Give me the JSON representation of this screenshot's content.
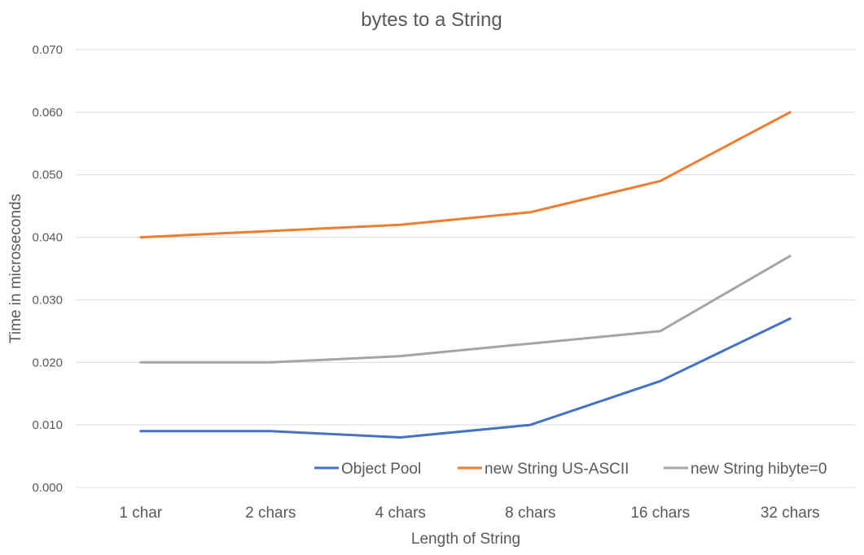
{
  "chart_data": {
    "type": "line",
    "title": "bytes to a String",
    "xlabel": "Length of String",
    "ylabel": "Time in microseconds",
    "categories": [
      "1 char",
      "2 chars",
      "4 chars",
      "8 chars",
      "16 chars",
      "32 chars"
    ],
    "ylim": [
      0,
      0.07
    ],
    "yticks": [
      "0.000",
      "0.010",
      "0.020",
      "0.030",
      "0.040",
      "0.050",
      "0.060",
      "0.070"
    ],
    "grid": true,
    "legend_position": "bottom-right",
    "series": [
      {
        "name": "Object Pool",
        "color": "#4472c4",
        "values": [
          0.009,
          0.009,
          0.008,
          0.01,
          0.017,
          0.027
        ]
      },
      {
        "name": "new String US-ASCII",
        "color": "#ed7d31",
        "values": [
          0.04,
          0.041,
          0.042,
          0.044,
          0.049,
          0.06
        ]
      },
      {
        "name": "new String hibyte=0",
        "color": "#a5a5a5",
        "values": [
          0.02,
          0.02,
          0.021,
          0.023,
          0.025,
          0.037
        ]
      }
    ]
  }
}
